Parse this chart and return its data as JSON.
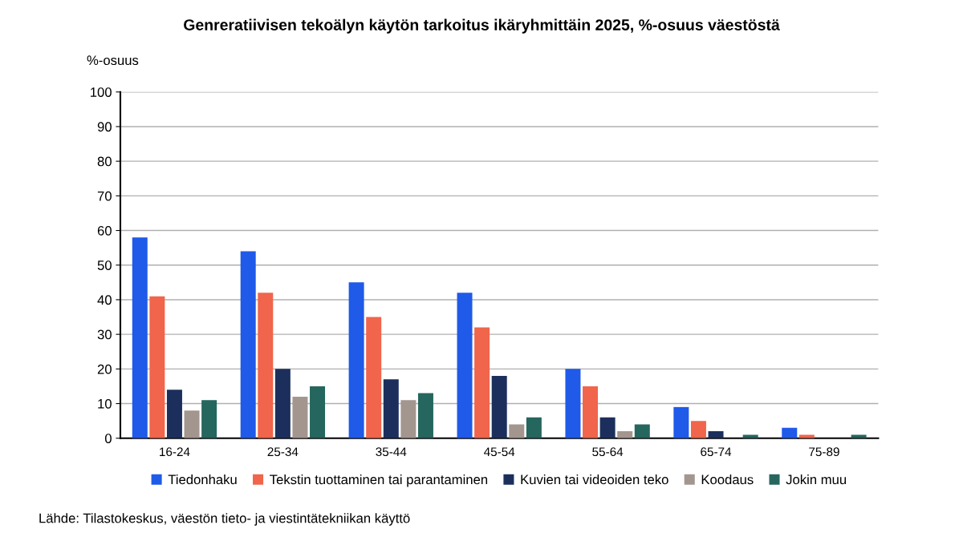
{
  "chart_data": {
    "type": "bar",
    "title": "Genreratiivisen tekoälyn käytön tarkoitus ikäryhmittäin 2025, %-osuus väestöstä",
    "ylabel": "%-osuus",
    "categories": [
      "16-24",
      "25-34",
      "35-44",
      "45-54",
      "55-64",
      "65-74",
      "75-89"
    ],
    "series": [
      {
        "name": "Tiedonhaku",
        "color": "#1f5ae8",
        "values": [
          58,
          54,
          45,
          42,
          20,
          9,
          3
        ]
      },
      {
        "name": "Tekstin tuottaminen tai parantaminen",
        "color": "#f0654b",
        "values": [
          41,
          42,
          35,
          32,
          15,
          5,
          1
        ]
      },
      {
        "name": "Kuvien tai videoiden teko",
        "color": "#1c2f5c",
        "values": [
          14,
          20,
          17,
          18,
          6,
          2,
          0
        ]
      },
      {
        "name": "Koodaus",
        "color": "#a3968f",
        "values": [
          8,
          12,
          11,
          4,
          2,
          0,
          0
        ]
      },
      {
        "name": "Jokin muu",
        "color": "#25665e",
        "values": [
          11,
          15,
          13,
          6,
          4,
          1,
          1
        ]
      }
    ],
    "ylim": [
      0,
      100
    ],
    "yticks": [
      0,
      10,
      20,
      30,
      40,
      50,
      60,
      70,
      80,
      90,
      100
    ],
    "grid": "y",
    "legend": "bottom",
    "annotations": [
      "Lähde: Tilastokeskus, väestön tieto- ja viestintätekniikan käyttö"
    ]
  }
}
